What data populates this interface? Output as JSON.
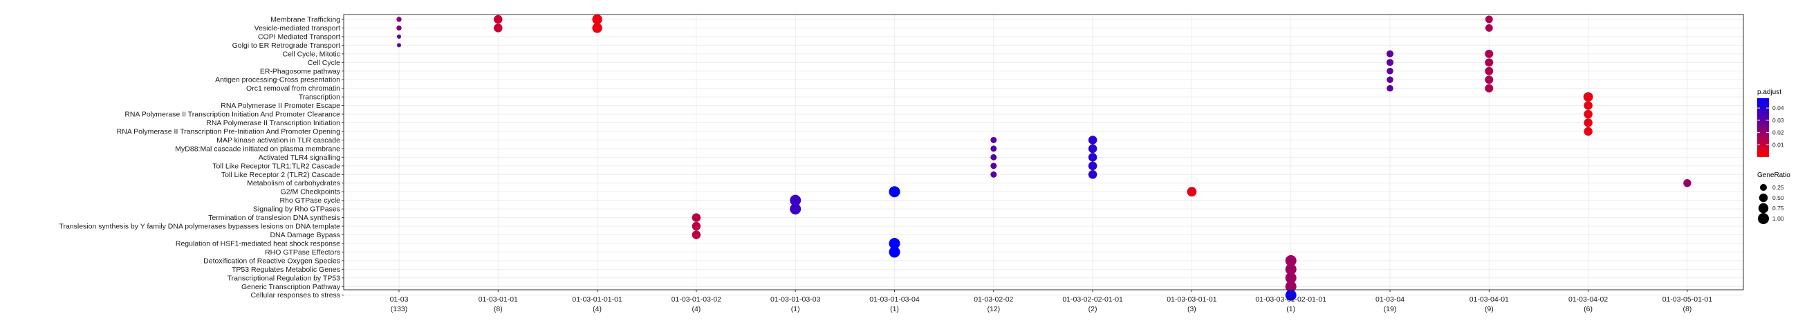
{
  "chart_data": {
    "type": "scatter",
    "title": "",
    "xlabel": "",
    "ylabel": "",
    "grid": true,
    "legend_position": "right",
    "x_categories": [
      {
        "code": "01-03",
        "count": "(133)"
      },
      {
        "code": "01-03-01-01",
        "count": "(8)"
      },
      {
        "code": "01-03-01-01-01",
        "count": "(4)"
      },
      {
        "code": "01-03-01-03-02",
        "count": "(4)"
      },
      {
        "code": "01-03-01-03-03",
        "count": "(1)"
      },
      {
        "code": "01-03-01-03-04",
        "count": "(1)"
      },
      {
        "code": "01-03-02-02",
        "count": "(12)"
      },
      {
        "code": "01-03-02-02-01-01",
        "count": "(2)"
      },
      {
        "code": "01-03-03-01-01",
        "count": "(3)"
      },
      {
        "code": "01-03-03-01-02-01-01",
        "count": "(1)"
      },
      {
        "code": "01-03-04",
        "count": "(19)"
      },
      {
        "code": "01-03-04-01",
        "count": "(9)"
      },
      {
        "code": "01-03-04-02",
        "count": "(6)"
      },
      {
        "code": "01-03-05-01-01",
        "count": "(8)"
      }
    ],
    "y_categories": [
      "Membrane Trafficking",
      "Vesicle-mediated transport",
      "COPI Mediated Transport",
      "Golgi to ER Retrograde Transport",
      "Cell Cycle, Mitotic",
      "Cell Cycle",
      "ER-Phagosome pathway",
      "Antigen processing-Cross presentation",
      "Orc1 removal from chromatin",
      "Transcription",
      "RNA Polymerase II Promoter Escape",
      "RNA Polymerase II Transcription Initiation And Promoter Clearance",
      "RNA Polymerase II Transcription Initiation",
      "RNA Polymerase II Transcription Pre-Initiation And Promoter Opening",
      "MAP kinase activation in TLR cascade",
      "MyD88:Mal cascade initiated on plasma membrane",
      "Activated TLR4 signalling",
      "Toll Like Receptor TLR1:TLR2 Cascade",
      "Toll Like Receptor 2 (TLR2) Cascade",
      "Metabolism of carbohydrates",
      "G2/M Checkpoints",
      "Rho GTPase cycle",
      "Signaling by Rho GTPases",
      "Termination of translesion DNA synthesis",
      "Translesion synthesis by Y family DNA polymerases bypasses lesions on DNA template",
      "DNA Damage Bypass",
      "Regulation of HSF1-mediated heat shock response",
      "RHO GTPase Effectors",
      "Detoxification of Reactive Oxygen Species",
      "TP53 Regulates Metabolic Genes",
      "Transcriptional Regulation by TP53",
      "Generic Transcription Pathway",
      "Cellular responses to stress"
    ],
    "points": [
      {
        "x": 0,
        "y": 0,
        "gene_ratio": 0.08,
        "p_adjust": 0.022
      },
      {
        "x": 0,
        "y": 1,
        "gene_ratio": 0.08,
        "p_adjust": 0.024
      },
      {
        "x": 0,
        "y": 2,
        "gene_ratio": 0.03,
        "p_adjust": 0.03
      },
      {
        "x": 0,
        "y": 3,
        "gene_ratio": 0.03,
        "p_adjust": 0.03
      },
      {
        "x": 1,
        "y": 0,
        "gene_ratio": 0.5,
        "p_adjust": 0.01
      },
      {
        "x": 1,
        "y": 1,
        "gene_ratio": 0.5,
        "p_adjust": 0.01
      },
      {
        "x": 2,
        "y": 0,
        "gene_ratio": 0.75,
        "p_adjust": 0.003
      },
      {
        "x": 2,
        "y": 1,
        "gene_ratio": 0.75,
        "p_adjust": 0.003
      },
      {
        "x": 3,
        "y": 23,
        "gene_ratio": 0.5,
        "p_adjust": 0.012
      },
      {
        "x": 3,
        "y": 24,
        "gene_ratio": 0.5,
        "p_adjust": 0.012
      },
      {
        "x": 3,
        "y": 25,
        "gene_ratio": 0.5,
        "p_adjust": 0.012
      },
      {
        "x": 4,
        "y": 21,
        "gene_ratio": 1.0,
        "p_adjust": 0.037
      },
      {
        "x": 4,
        "y": 22,
        "gene_ratio": 1.0,
        "p_adjust": 0.037
      },
      {
        "x": 5,
        "y": 20,
        "gene_ratio": 1.0,
        "p_adjust": 0.048
      },
      {
        "x": 5,
        "y": 26,
        "gene_ratio": 1.0,
        "p_adjust": 0.048
      },
      {
        "x": 5,
        "y": 27,
        "gene_ratio": 1.0,
        "p_adjust": 0.048
      },
      {
        "x": 6,
        "y": 14,
        "gene_ratio": 0.17,
        "p_adjust": 0.032
      },
      {
        "x": 6,
        "y": 15,
        "gene_ratio": 0.17,
        "p_adjust": 0.032
      },
      {
        "x": 6,
        "y": 16,
        "gene_ratio": 0.17,
        "p_adjust": 0.032
      },
      {
        "x": 6,
        "y": 17,
        "gene_ratio": 0.17,
        "p_adjust": 0.032
      },
      {
        "x": 6,
        "y": 18,
        "gene_ratio": 0.17,
        "p_adjust": 0.032
      },
      {
        "x": 7,
        "y": 14,
        "gene_ratio": 0.5,
        "p_adjust": 0.04
      },
      {
        "x": 7,
        "y": 15,
        "gene_ratio": 0.5,
        "p_adjust": 0.04
      },
      {
        "x": 7,
        "y": 16,
        "gene_ratio": 0.5,
        "p_adjust": 0.04
      },
      {
        "x": 7,
        "y": 17,
        "gene_ratio": 0.5,
        "p_adjust": 0.04
      },
      {
        "x": 7,
        "y": 18,
        "gene_ratio": 0.5,
        "p_adjust": 0.04
      },
      {
        "x": 8,
        "y": 20,
        "gene_ratio": 0.67,
        "p_adjust": 0.005
      },
      {
        "x": 9,
        "y": 28,
        "gene_ratio": 1.0,
        "p_adjust": 0.018
      },
      {
        "x": 9,
        "y": 29,
        "gene_ratio": 1.0,
        "p_adjust": 0.018
      },
      {
        "x": 9,
        "y": 30,
        "gene_ratio": 1.0,
        "p_adjust": 0.018
      },
      {
        "x": 9,
        "y": 31,
        "gene_ratio": 1.0,
        "p_adjust": 0.018
      },
      {
        "x": 9,
        "y": 32,
        "gene_ratio": 1.0,
        "p_adjust": 0.045
      },
      {
        "x": 10,
        "y": 4,
        "gene_ratio": 0.26,
        "p_adjust": 0.03
      },
      {
        "x": 10,
        "y": 5,
        "gene_ratio": 0.26,
        "p_adjust": 0.03
      },
      {
        "x": 10,
        "y": 6,
        "gene_ratio": 0.21,
        "p_adjust": 0.03
      },
      {
        "x": 10,
        "y": 7,
        "gene_ratio": 0.21,
        "p_adjust": 0.03
      },
      {
        "x": 10,
        "y": 8,
        "gene_ratio": 0.21,
        "p_adjust": 0.03
      },
      {
        "x": 11,
        "y": 0,
        "gene_ratio": 0.33,
        "p_adjust": 0.015
      },
      {
        "x": 11,
        "y": 1,
        "gene_ratio": 0.33,
        "p_adjust": 0.015
      },
      {
        "x": 11,
        "y": 4,
        "gene_ratio": 0.44,
        "p_adjust": 0.015
      },
      {
        "x": 11,
        "y": 5,
        "gene_ratio": 0.44,
        "p_adjust": 0.015
      },
      {
        "x": 11,
        "y": 6,
        "gene_ratio": 0.44,
        "p_adjust": 0.015
      },
      {
        "x": 11,
        "y": 7,
        "gene_ratio": 0.44,
        "p_adjust": 0.015
      },
      {
        "x": 11,
        "y": 8,
        "gene_ratio": 0.44,
        "p_adjust": 0.015
      },
      {
        "x": 12,
        "y": 9,
        "gene_ratio": 0.67,
        "p_adjust": 0.004
      },
      {
        "x": 12,
        "y": 10,
        "gene_ratio": 0.5,
        "p_adjust": 0.004
      },
      {
        "x": 12,
        "y": 11,
        "gene_ratio": 0.5,
        "p_adjust": 0.004
      },
      {
        "x": 12,
        "y": 12,
        "gene_ratio": 0.5,
        "p_adjust": 0.004
      },
      {
        "x": 12,
        "y": 13,
        "gene_ratio": 0.5,
        "p_adjust": 0.004
      },
      {
        "x": 13,
        "y": 19,
        "gene_ratio": 0.38,
        "p_adjust": 0.02
      }
    ],
    "color_legend": {
      "title": "p.adjust",
      "ticks": [
        0.04,
        0.03,
        0.02,
        0.01
      ],
      "range": [
        0.0,
        0.048
      ],
      "low_color": "#FF0000",
      "high_color": "#0000FF"
    },
    "size_legend": {
      "title": "GeneRatio",
      "ticks": [
        0.25,
        0.5,
        0.75,
        1.0
      ]
    }
  }
}
